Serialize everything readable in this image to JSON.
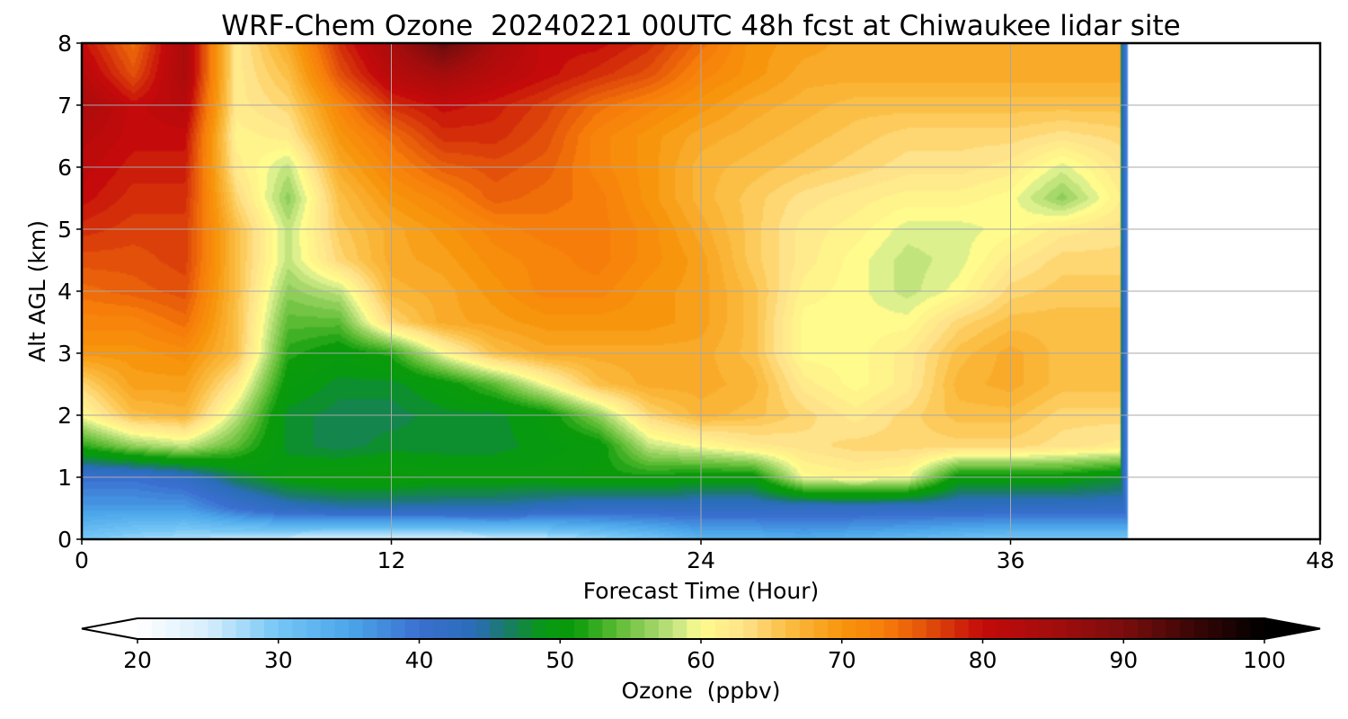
{
  "chart_data": {
    "type": "heatmap",
    "title": "WRF-Chem Ozone  20240221 00UTC 48h fcst at Chiwaukee lidar site",
    "xlabel": "Forecast Time (Hour)",
    "ylabel": "Alt AGL (km)",
    "xlim": [
      0,
      48
    ],
    "ylim": [
      0,
      8
    ],
    "x_ticks": [
      "0",
      "12",
      "24",
      "36",
      "48"
    ],
    "y_ticks": [
      "0",
      "1",
      "2",
      "3",
      "4",
      "5",
      "6",
      "7",
      "8"
    ],
    "grid": true,
    "data_end_hour": 40.5,
    "x_hours": [
      0,
      2,
      4,
      6,
      8,
      10,
      12,
      14,
      16,
      18,
      20,
      22,
      24,
      26,
      28,
      30,
      32,
      34,
      36,
      38,
      40.5
    ],
    "z_km": [
      0,
      0.5,
      1,
      1.5,
      2,
      2.5,
      3,
      3.5,
      4,
      4.5,
      5,
      5.5,
      6,
      6.5,
      7,
      7.5,
      8
    ],
    "ozone_ppbv": [
      [
        30,
        28,
        27,
        26,
        25,
        24,
        24,
        24,
        25,
        26,
        28,
        30,
        33,
        33,
        34,
        33,
        32,
        31,
        30,
        30,
        30
      ],
      [
        36,
        36,
        36,
        40,
        43,
        44,
        44,
        44,
        44,
        43,
        42,
        42,
        42,
        42,
        42,
        42,
        42,
        42,
        42,
        42,
        42
      ],
      [
        40,
        40,
        42,
        47,
        50,
        51,
        51,
        50,
        50,
        50,
        51,
        51,
        50,
        50,
        60,
        61,
        60,
        50,
        50,
        50,
        48
      ],
      [
        52,
        56,
        58,
        54,
        48,
        47,
        48,
        48,
        48,
        49,
        50,
        58,
        60,
        62,
        63,
        64,
        64,
        64,
        64,
        63,
        62
      ],
      [
        60,
        66,
        67,
        58,
        48,
        47,
        47,
        48,
        48,
        50,
        56,
        64,
        67,
        66,
        64,
        62,
        64,
        66,
        66,
        64,
        64
      ],
      [
        64,
        69,
        69,
        62,
        50,
        48,
        48,
        50,
        54,
        60,
        66,
        68,
        68,
        67,
        62,
        60,
        62,
        67,
        68,
        66,
        66
      ],
      [
        70,
        70,
        71,
        66,
        52,
        50,
        52,
        60,
        66,
        68,
        68,
        68,
        68,
        66,
        60,
        60,
        62,
        66,
        68,
        66,
        66
      ],
      [
        72,
        72,
        74,
        66,
        54,
        54,
        64,
        68,
        69,
        70,
        70,
        70,
        69,
        66,
        60,
        60,
        60,
        64,
        66,
        66,
        66
      ],
      [
        74,
        75,
        76,
        66,
        56,
        58,
        67,
        68,
        70,
        72,
        72,
        70,
        69,
        66,
        61,
        60,
        58,
        60,
        64,
        65,
        65
      ],
      [
        76,
        76,
        77,
        66,
        58,
        64,
        68,
        69,
        71,
        72,
        73,
        71,
        69,
        65,
        62,
        60,
        58,
        59,
        62,
        64,
        64
      ],
      [
        78,
        77,
        77,
        66,
        58,
        65,
        68,
        70,
        72,
        73,
        73,
        71,
        68,
        65,
        62,
        61,
        59,
        59,
        60,
        62,
        63
      ],
      [
        80,
        78,
        78,
        64,
        56,
        66,
        70,
        72,
        75,
        74,
        73,
        70,
        67,
        65,
        63,
        62,
        61,
        61,
        60,
        56,
        62
      ],
      [
        81,
        79,
        79,
        62,
        58,
        68,
        72,
        75,
        76,
        75,
        72,
        70,
        67,
        66,
        65,
        64,
        63,
        63,
        62,
        59,
        63
      ],
      [
        82,
        80,
        80,
        61,
        62,
        70,
        74,
        78,
        78,
        76,
        72,
        70,
        68,
        67,
        66,
        65,
        64,
        64,
        64,
        63,
        64
      ],
      [
        84,
        80,
        82,
        62,
        64,
        72,
        78,
        80,
        79,
        77,
        74,
        72,
        70,
        68,
        67,
        66,
        66,
        66,
        66,
        66,
        66
      ],
      [
        82,
        76,
        84,
        62,
        66,
        76,
        82,
        85,
        82,
        80,
        78,
        76,
        72,
        70,
        68,
        68,
        68,
        68,
        68,
        68,
        68
      ],
      [
        80,
        74,
        84,
        62,
        68,
        78,
        84,
        92,
        84,
        80,
        80,
        78,
        74,
        70,
        69,
        68,
        68,
        68,
        68,
        68,
        68
      ]
    ],
    "colorbar": {
      "label": "Ozone  (ppbv)",
      "min": 20,
      "max": 100,
      "ticks": [
        "20",
        "30",
        "40",
        "50",
        "60",
        "70",
        "80",
        "90",
        "100"
      ],
      "extend": "both",
      "color_stops": [
        [
          20,
          "#ffffff"
        ],
        [
          25,
          "#d6eefc"
        ],
        [
          30,
          "#74c6f5"
        ],
        [
          35,
          "#4ba6ea"
        ],
        [
          40,
          "#3a6fd0"
        ],
        [
          44,
          "#2a6db8"
        ],
        [
          46,
          "#1a7a6c"
        ],
        [
          49,
          "#079a10"
        ],
        [
          51,
          "#0a9a0a"
        ],
        [
          54,
          "#5bbb33"
        ],
        [
          57,
          "#a6d86b"
        ],
        [
          59,
          "#dcf08e"
        ],
        [
          60,
          "#fffb8c"
        ],
        [
          63,
          "#ffe38a"
        ],
        [
          66,
          "#fbbf45"
        ],
        [
          70,
          "#f7950c"
        ],
        [
          73,
          "#f77d0a"
        ],
        [
          76,
          "#e2500a"
        ],
        [
          80,
          "#c40a0a"
        ],
        [
          85,
          "#a30d0d"
        ],
        [
          90,
          "#7a0d0d"
        ],
        [
          95,
          "#3a0606"
        ],
        [
          100,
          "#000000"
        ]
      ]
    }
  }
}
